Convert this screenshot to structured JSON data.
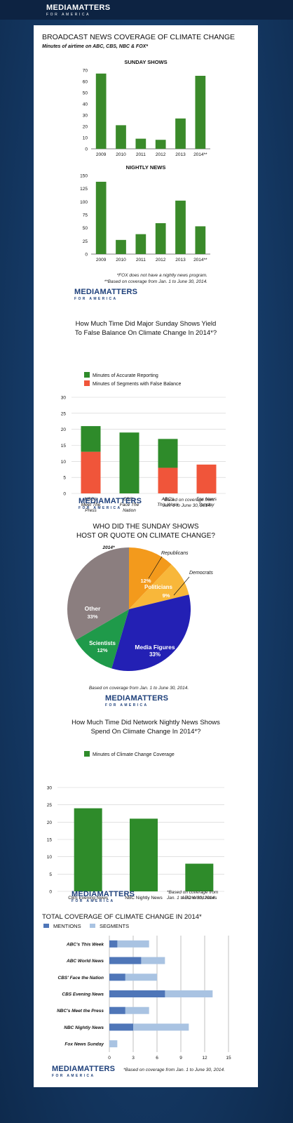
{
  "header": {
    "logo": "MEDIAMATTERS",
    "logo_sub": "FOR AMERICA"
  },
  "section1": {
    "title": "BROADCAST NEWS COVERAGE OF CLIMATE CHANGE",
    "subtitle": "Minutes of airtime on ABC, CBS, NBC & FOX*",
    "footnote1": "*FOX does not have a nightly news program.",
    "footnote2": "**Based on coverage from Jan. 1 to June 30, 2014."
  },
  "section2": {
    "title_line1": "How Much Time Did Major Sunday Shows Yield",
    "title_line2": "To False Balance On Climate Change In 2014*?",
    "footnote1": "*Based on coverage from",
    "footnote2": "Jan. 1 to June 30, 2014."
  },
  "section3": {
    "title_line1": "WHO DID THE SUNDAY SHOWS",
    "title_line2": "HOST OR QUOTE ON CLIMATE CHANGE?",
    "footnote": "Based on coverage from Jan. 1 to June 30, 2014."
  },
  "section4": {
    "title_line1": "How Much Time Did Network Nightly News Shows",
    "title_line2": "Spend On Climate Change In 2014*?",
    "footnote1": "*Based on coverage from",
    "footnote2": "Jan. 1 to June 30, 2014."
  },
  "section5": {
    "title": "TOTAL COVERAGE OF CLIMATE CHANGE IN 2014*",
    "footnote": "*Based on coverage from Jan. 1 to June 30, 2014."
  },
  "chart_data": [
    {
      "type": "bar",
      "title": "SUNDAY SHOWS",
      "categories": [
        "2009",
        "2010",
        "2011",
        "2012",
        "2013",
        "2014**"
      ],
      "values": [
        67,
        21,
        9,
        8,
        27,
        65
      ],
      "ylim": [
        0,
        70
      ],
      "yticks": [
        0,
        10,
        20,
        30,
        40,
        50,
        60,
        70
      ],
      "color": "#3a8a2a"
    },
    {
      "type": "bar",
      "title": "NIGHTLY NEWS",
      "categories": [
        "2009",
        "2010",
        "2011",
        "2012",
        "2013",
        "2014**"
      ],
      "values": [
        138,
        27,
        38,
        59,
        102,
        53
      ],
      "ylim": [
        0,
        150
      ],
      "yticks": [
        0,
        25,
        50,
        75,
        100,
        125,
        150
      ],
      "color": "#3a8a2a"
    },
    {
      "type": "bar",
      "stacked": true,
      "categories": [
        "NBC's\nMeet The\nPress",
        "CBS's\nFace The\nNation",
        "ABC's\nThis Week",
        "Fox News\nSunday"
      ],
      "series": [
        {
          "name": "Minutes of Segments with False Balance",
          "values": [
            13,
            0,
            8,
            9
          ],
          "color": "#f0553a"
        },
        {
          "name": "Minutes of Accurate Reporting",
          "values": [
            8,
            19,
            9,
            0
          ],
          "color": "#2e8b2a"
        }
      ],
      "legend": [
        "Minutes of Accurate Reporting",
        "Minutes of Segments with False Balance"
      ],
      "ylim": [
        0,
        30
      ],
      "yticks": [
        0,
        5,
        10,
        15,
        20,
        25,
        30
      ]
    },
    {
      "type": "pie",
      "label_top": "2014*",
      "slices": [
        {
          "label": "Politicians",
          "value": 12,
          "text": "12%",
          "sub": "Republicans",
          "color": "#f39a1c"
        },
        {
          "label": "",
          "value": 9,
          "text": "9%",
          "sub": "Democrats",
          "color": "#f8b73a"
        },
        {
          "label": "Media Figures",
          "value": 33,
          "text": "33%",
          "color": "#2320b4"
        },
        {
          "label": "Scientists",
          "value": 12,
          "text": "12%",
          "color": "#1f9a4a"
        },
        {
          "label": "Other",
          "value": 33,
          "text": "33%",
          "color": "#8b7e7f"
        }
      ]
    },
    {
      "type": "bar",
      "categories": [
        "CBS Evening News",
        "NBC Nightly News",
        "ABC World News"
      ],
      "values": [
        24,
        21,
        8
      ],
      "legend": [
        "Minutes of Climate Change Coverage"
      ],
      "ylim": [
        0,
        30
      ],
      "yticks": [
        0,
        5,
        10,
        15,
        20,
        25,
        30
      ],
      "color": "#2e8b2a"
    },
    {
      "type": "bar",
      "orientation": "horizontal",
      "categories": [
        "ABC's This Week",
        "ABC World News",
        "CBS' Face the Nation",
        "CBS Evening News",
        "NBC's Meet the Press",
        "NBC Nightly News",
        "Fox News Sunday"
      ],
      "series": [
        {
          "name": "MENTIONS",
          "values": [
            1,
            4,
            2,
            7,
            2,
            3,
            0
          ],
          "color": "#4f76b8"
        },
        {
          "name": "SEGMENTS",
          "values": [
            5,
            7,
            6,
            13,
            5,
            10,
            1
          ],
          "color": "#a9c3e2"
        }
      ],
      "xlim": [
        0,
        15
      ],
      "xticks": [
        "0",
        "3",
        "6",
        "9",
        "12",
        "15"
      ]
    }
  ]
}
